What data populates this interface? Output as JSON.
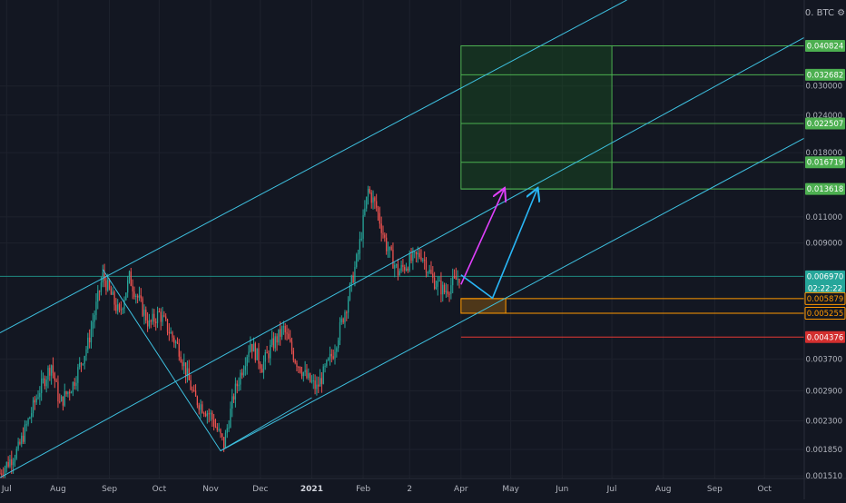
{
  "header": {
    "symbol_label": "0. BTC ⚙"
  },
  "colors": {
    "background": "#131722",
    "grid": "#1e222d",
    "axis_text": "#b2b5be",
    "candle_up": "#26a69a",
    "candle_down": "#ef5350",
    "channel": "#3ec1e0",
    "target_zone_fill": "#1b5e20",
    "target_line": "#4caf50",
    "support_line": "#ff9800",
    "stop_line": "#e53935",
    "projection_magenta": "#e040fb",
    "projection_cyan": "#29b6f6"
  },
  "chart_data": {
    "type": "candlestick",
    "symbol": "BTC",
    "y_scale": "log",
    "ylim": [
      0.00148,
      0.058
    ],
    "xlim": [
      "2020-06-27",
      "2021-10-25"
    ],
    "grid": true,
    "x_ticks": [
      {
        "date": "2020-07-01",
        "label": "Jul"
      },
      {
        "date": "2020-08-01",
        "label": "Aug"
      },
      {
        "date": "2020-09-01",
        "label": "Sep"
      },
      {
        "date": "2020-10-01",
        "label": "Oct"
      },
      {
        "date": "2020-11-01",
        "label": "Nov"
      },
      {
        "date": "2020-12-01",
        "label": "Dec"
      },
      {
        "date": "2021-01-01",
        "label": "2021",
        "bold": true
      },
      {
        "date": "2021-02-01",
        "label": "Feb"
      },
      {
        "date": "2021-03-01",
        "label": "2"
      },
      {
        "date": "2021-04-01",
        "label": "Apr"
      },
      {
        "date": "2021-05-01",
        "label": "May"
      },
      {
        "date": "2021-06-01",
        "label": "Jun"
      },
      {
        "date": "2021-07-01",
        "label": "Jul"
      },
      {
        "date": "2021-08-01",
        "label": "Aug"
      },
      {
        "date": "2021-09-01",
        "label": "Sep"
      },
      {
        "date": "2021-10-01",
        "label": "Oct"
      }
    ],
    "y_ticks": [
      "0.030000",
      "0.024000",
      "0.018000",
      "0.011000",
      "0.009000",
      "0.003700",
      "0.002900",
      "0.002300",
      "0.001850",
      "0.001510"
    ],
    "price_levels": [
      {
        "value": 0.040824,
        "label": "0.040824",
        "role": "target"
      },
      {
        "value": 0.032682,
        "label": "0.032682",
        "role": "target"
      },
      {
        "value": 0.022507,
        "label": "0.022507",
        "role": "target"
      },
      {
        "value": 0.016719,
        "label": "0.016719",
        "role": "target"
      },
      {
        "value": 0.013618,
        "label": "0.013618",
        "role": "target"
      },
      {
        "value": 0.00697,
        "label": "0.006970",
        "role": "last",
        "countdown": "02:22:22"
      },
      {
        "value": 0.005879,
        "label": "0.005879",
        "role": "support"
      },
      {
        "value": 0.005255,
        "label": "0.005255",
        "role": "support"
      },
      {
        "value": 0.004376,
        "label": "0.004376",
        "role": "stop"
      }
    ],
    "target_zone": {
      "from": "2021-04-01",
      "to": "2021-07-01",
      "low": 0.013618,
      "high": 0.040824
    },
    "support_zone": {
      "from": "2021-04-01",
      "to": "2021-04-28",
      "low": 0.005255,
      "high": 0.005879
    },
    "channel_lines": [
      {
        "name": "upper",
        "points": [
          {
            "date": "2020-06-27",
            "value": 0.00452
          },
          {
            "date": "2021-07-10",
            "value": 0.058
          }
        ]
      },
      {
        "name": "middle",
        "points": [
          {
            "date": "2020-06-27",
            "value": 0.00149
          },
          {
            "date": "2021-10-25",
            "value": 0.0435
          }
        ]
      },
      {
        "name": "lower",
        "points": [
          {
            "date": "2020-11-07",
            "value": 0.00183
          },
          {
            "date": "2021-10-25",
            "value": 0.0201
          }
        ]
      }
    ],
    "zigzag": [
      {
        "date": "2020-08-28",
        "value": 0.00735
      },
      {
        "date": "2020-11-07",
        "value": 0.00183
      },
      {
        "date": "2021-01-01",
        "value": 0.00275
      }
    ],
    "projection_arrows": [
      {
        "color": "magenta",
        "points": [
          {
            "date": "2021-04-01",
            "value": 0.00655
          },
          {
            "date": "2021-04-27",
            "value": 0.0136
          }
        ]
      },
      {
        "color": "cyan",
        "points": [
          {
            "date": "2021-04-01",
            "value": 0.00705
          },
          {
            "date": "2021-04-20",
            "value": 0.0059
          },
          {
            "date": "2021-05-17",
            "value": 0.0136
          }
        ]
      }
    ],
    "price_path": [
      {
        "date": "2020-06-27",
        "value": 0.00154
      },
      {
        "date": "2020-07-08",
        "value": 0.00185
      },
      {
        "date": "2020-07-20",
        "value": 0.00285
      },
      {
        "date": "2020-07-28",
        "value": 0.00355
      },
      {
        "date": "2020-08-02",
        "value": 0.00262
      },
      {
        "date": "2020-08-10",
        "value": 0.00305
      },
      {
        "date": "2020-08-19",
        "value": 0.00415
      },
      {
        "date": "2020-08-28",
        "value": 0.007
      },
      {
        "date": "2020-09-07",
        "value": 0.0052
      },
      {
        "date": "2020-09-13",
        "value": 0.0069
      },
      {
        "date": "2020-09-25",
        "value": 0.0048
      },
      {
        "date": "2020-10-01",
        "value": 0.00525
      },
      {
        "date": "2020-10-13",
        "value": 0.004
      },
      {
        "date": "2020-10-22",
        "value": 0.00275
      },
      {
        "date": "2020-11-01",
        "value": 0.0024
      },
      {
        "date": "2020-11-09",
        "value": 0.00192
      },
      {
        "date": "2020-11-15",
        "value": 0.0028
      },
      {
        "date": "2020-11-25",
        "value": 0.0042
      },
      {
        "date": "2020-12-02",
        "value": 0.0035
      },
      {
        "date": "2020-12-08",
        "value": 0.0041
      },
      {
        "date": "2020-12-15",
        "value": 0.00465
      },
      {
        "date": "2020-12-22",
        "value": 0.0037
      },
      {
        "date": "2020-12-29",
        "value": 0.0032
      },
      {
        "date": "2021-01-04",
        "value": 0.00295
      },
      {
        "date": "2021-01-14",
        "value": 0.0039
      },
      {
        "date": "2021-01-22",
        "value": 0.0056
      },
      {
        "date": "2021-01-29",
        "value": 0.0083
      },
      {
        "date": "2021-02-04",
        "value": 0.0135
      },
      {
        "date": "2021-02-09",
        "value": 0.0118
      },
      {
        "date": "2021-02-15",
        "value": 0.0088
      },
      {
        "date": "2021-02-22",
        "value": 0.0072
      },
      {
        "date": "2021-03-01",
        "value": 0.0078
      },
      {
        "date": "2021-03-08",
        "value": 0.0083
      },
      {
        "date": "2021-03-15",
        "value": 0.0068
      },
      {
        "date": "2021-03-22",
        "value": 0.0062
      },
      {
        "date": "2021-03-31",
        "value": 0.00697
      }
    ]
  }
}
